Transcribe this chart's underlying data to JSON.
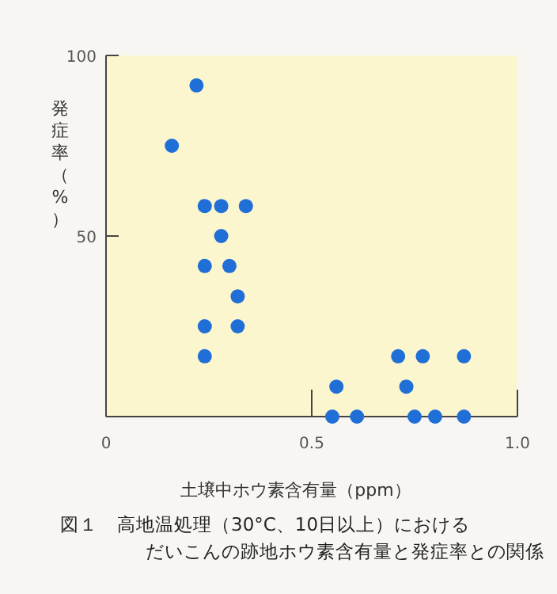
{
  "chart_data": {
    "type": "scatter",
    "xlabel": "土壌中ホウ素含有量（ppm）",
    "ylabel": "発症率（%）",
    "annotations": [
      "図１　高地温処理（30°C、10日以上）におけるだいこんの跡地ホウ素含有量と発症率との関係"
    ],
    "x": [
      0.22,
      0.16,
      0.24,
      0.28,
      0.34,
      0.28,
      0.24,
      0.3,
      0.32,
      0.24,
      0.32,
      0.24,
      0.71,
      0.77,
      0.87,
      0.56,
      0.73,
      0.55,
      0.61,
      0.75,
      0.8,
      0.87
    ],
    "values": [
      91.7,
      75,
      58.3,
      58.3,
      58.3,
      50,
      41.7,
      41.7,
      33.3,
      25,
      25,
      16.7,
      16.7,
      16.7,
      16.7,
      8.3,
      8.3,
      0,
      0,
      0,
      0,
      0
    ],
    "color": "#1f6fd6",
    "marker": "circle",
    "grid": false,
    "xlim": [
      0,
      1.0
    ],
    "xticks": [
      0,
      0.5,
      {
        "value": 1.0,
        "label": "1.0"
      }
    ],
    "ylim": [
      0,
      100
    ],
    "yticks": [
      {
        "value": 0,
        "label": null
      },
      50,
      100
    ]
  }
}
